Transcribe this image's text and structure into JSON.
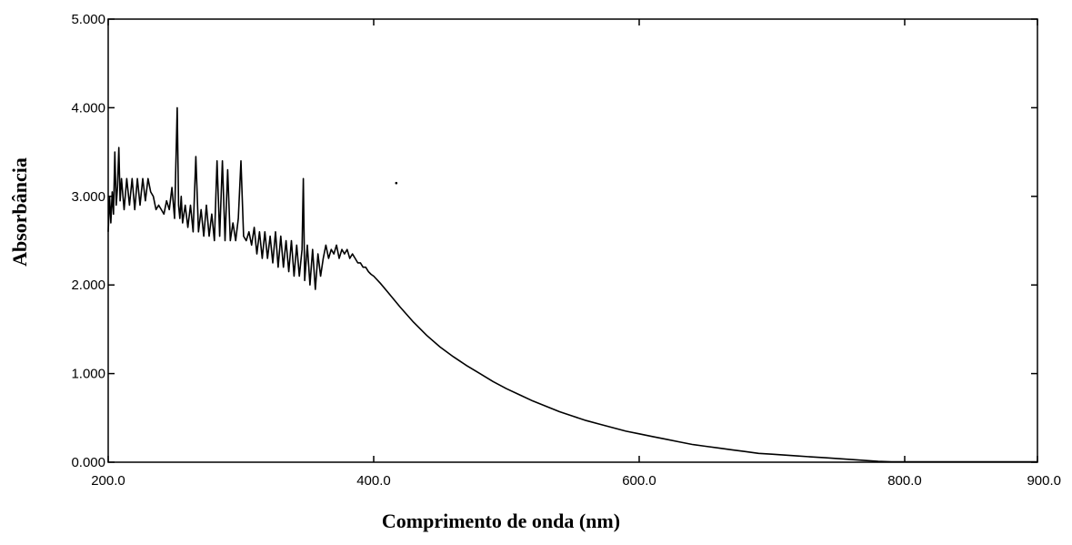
{
  "chart_data": {
    "type": "line",
    "title": "",
    "xlabel": "Comprimento de onda (nm)",
    "ylabel": "Absorbância",
    "xlim": [
      200,
      900
    ],
    "ylim": [
      0,
      5
    ],
    "x_ticks": [
      {
        "value": 200,
        "label": "200.0"
      },
      {
        "value": 400,
        "label": "400.0"
      },
      {
        "value": 600,
        "label": "600.0"
      },
      {
        "value": 800,
        "label": "800.0"
      },
      {
        "value": 900,
        "label": "900.0"
      }
    ],
    "y_ticks": [
      {
        "value": 0,
        "label": "0.000"
      },
      {
        "value": 1,
        "label": "1.000"
      },
      {
        "value": 2,
        "label": "2.000"
      },
      {
        "value": 3,
        "label": "3.000"
      },
      {
        "value": 4,
        "label": "4.000"
      },
      {
        "value": 5,
        "label": "5.000"
      }
    ],
    "grid": false,
    "legend": "none",
    "line_color": "#000000",
    "series": [
      {
        "x": [
          200,
          201,
          202,
          203,
          204,
          205,
          206,
          207,
          208,
          209,
          210,
          212,
          214,
          216,
          218,
          220,
          222,
          224,
          226,
          228,
          230,
          232,
          234,
          236,
          238,
          240,
          242,
          244,
          246,
          248,
          250,
          252,
          253,
          254,
          255,
          256,
          258,
          260,
          262,
          264,
          266,
          268,
          270,
          272,
          274,
          276,
          278,
          280,
          282,
          284,
          286,
          288,
          290,
          292,
          294,
          296,
          298,
          300,
          302,
          304,
          306,
          308,
          310,
          312,
          314,
          316,
          318,
          320,
          322,
          324,
          326,
          328,
          330,
          332,
          334,
          336,
          338,
          340,
          342,
          344,
          346,
          347,
          348,
          350,
          352,
          354,
          356,
          358,
          360,
          362,
          364,
          366,
          368,
          370,
          372,
          374,
          376,
          378,
          380,
          382,
          384,
          386,
          388,
          390,
          392,
          394,
          396,
          398,
          400,
          405,
          410,
          420,
          430,
          440,
          450,
          460,
          470,
          480,
          490,
          500,
          510,
          520,
          530,
          540,
          550,
          560,
          570,
          580,
          590,
          600,
          610,
          620,
          630,
          640,
          650,
          660,
          670,
          680,
          690,
          700,
          710,
          720,
          730,
          740,
          750,
          760,
          770,
          780,
          790,
          800,
          810,
          820,
          830,
          840,
          850,
          860,
          870,
          880,
          890,
          900
        ],
        "y": [
          2.6,
          3.0,
          2.7,
          3.05,
          2.8,
          3.5,
          2.9,
          3.1,
          3.55,
          2.95,
          3.2,
          2.85,
          3.2,
          2.9,
          3.2,
          2.85,
          3.2,
          2.9,
          3.2,
          2.95,
          3.2,
          3.05,
          3.0,
          2.85,
          2.9,
          2.85,
          2.8,
          2.95,
          2.85,
          3.1,
          2.75,
          4.0,
          2.9,
          2.75,
          3.0,
          2.7,
          2.9,
          2.65,
          2.9,
          2.6,
          3.45,
          2.6,
          2.85,
          2.55,
          2.9,
          2.55,
          2.8,
          2.5,
          3.4,
          2.55,
          3.4,
          2.5,
          3.3,
          2.5,
          2.7,
          2.5,
          2.75,
          3.4,
          2.55,
          2.5,
          2.6,
          2.45,
          2.65,
          2.35,
          2.6,
          2.3,
          2.6,
          2.3,
          2.55,
          2.25,
          2.6,
          2.2,
          2.55,
          2.2,
          2.5,
          2.15,
          2.5,
          2.1,
          2.45,
          2.1,
          2.4,
          3.2,
          2.05,
          2.45,
          2.0,
          2.4,
          1.95,
          2.35,
          2.1,
          2.3,
          2.45,
          2.3,
          2.4,
          2.35,
          2.45,
          2.3,
          2.4,
          2.35,
          2.4,
          2.3,
          2.35,
          2.3,
          2.25,
          2.25,
          2.2,
          2.2,
          2.15,
          2.12,
          2.1,
          2.02,
          1.93,
          1.75,
          1.58,
          1.43,
          1.3,
          1.19,
          1.09,
          1.0,
          0.91,
          0.83,
          0.76,
          0.69,
          0.63,
          0.57,
          0.52,
          0.47,
          0.43,
          0.39,
          0.35,
          0.32,
          0.29,
          0.26,
          0.23,
          0.2,
          0.18,
          0.16,
          0.14,
          0.12,
          0.1,
          0.09,
          0.08,
          0.07,
          0.06,
          0.05,
          0.04,
          0.03,
          0.02,
          0.01,
          0.005,
          0.005,
          0.005,
          0.005,
          0.005,
          0.005,
          0.005,
          0.005,
          0.005,
          0.005,
          0.005,
          0.005
        ]
      }
    ],
    "point_markers": [
      {
        "x": 417,
        "y": 3.15
      }
    ]
  }
}
